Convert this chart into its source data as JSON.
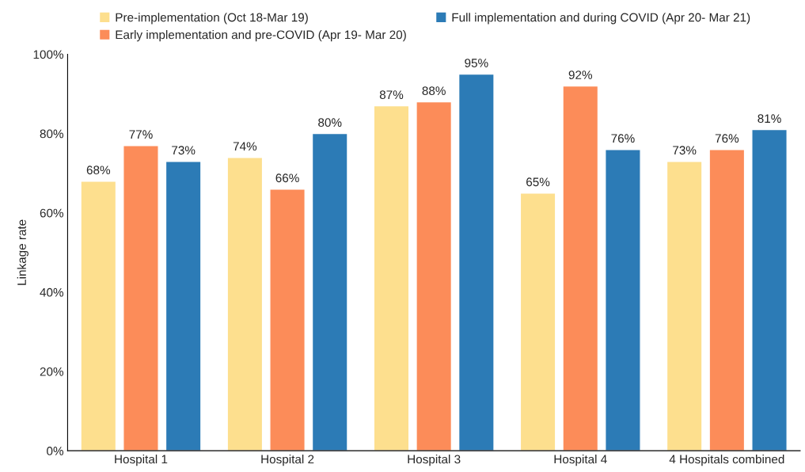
{
  "chart_data": {
    "type": "bar",
    "ylabel": "Linkage rate",
    "categories": [
      "Hospital 1",
      "Hospital 2",
      "Hospital 3",
      "Hospital 4",
      "4 Hospitals combined"
    ],
    "series": [
      {
        "name": "Pre-implementation (Oct 18-Mar 19)",
        "color": "#fddf8e",
        "values": [
          68,
          74,
          87,
          65,
          73
        ],
        "value_labels": [
          "68%",
          "74%",
          "87%",
          "65%",
          "73%"
        ]
      },
      {
        "name": "Early implementation and pre-COVID (Apr 19- Mar 20)",
        "color": "#fc8c59",
        "values": [
          77,
          66,
          88,
          92,
          76
        ],
        "value_labels": [
          "77%",
          "66%",
          "88%",
          "92%",
          "76%"
        ]
      },
      {
        "name": "Full implementation and during COVID (Apr 20- Mar 21)",
        "color": "#2c7bb6",
        "values": [
          73,
          80,
          95,
          76,
          81
        ],
        "value_labels": [
          "73%",
          "80%",
          "95%",
          "76%",
          "81%"
        ]
      }
    ],
    "ylim": [
      0,
      100
    ],
    "yticks": [
      {
        "value": 0,
        "label": "0%"
      },
      {
        "value": 20,
        "label": "20%"
      },
      {
        "value": 40,
        "label": "40%"
      },
      {
        "value": 60,
        "label": "60%"
      },
      {
        "value": 80,
        "label": "80%"
      },
      {
        "value": 100,
        "label": "100%"
      }
    ],
    "legend": "top",
    "grid": false
  }
}
